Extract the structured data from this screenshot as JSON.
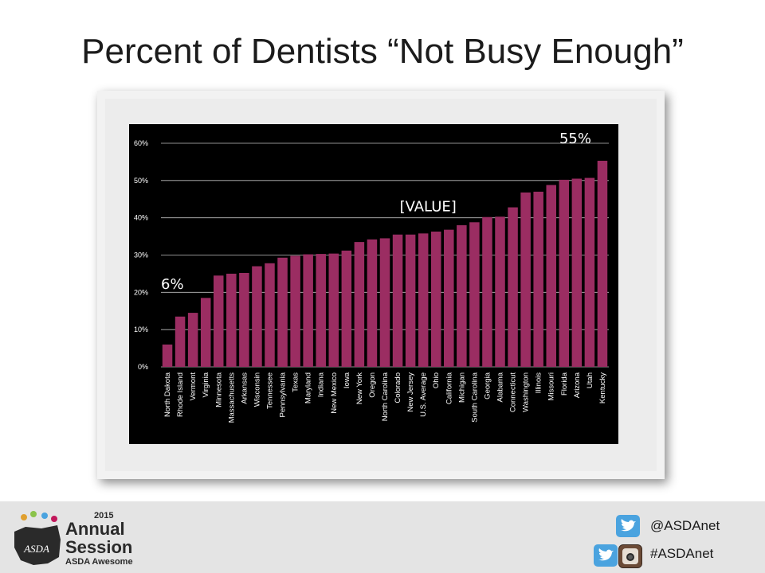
{
  "slide": {
    "title": "Percent of Dentists “Not Busy Enough”"
  },
  "footer": {
    "logo_year": "2015",
    "logo_line1": "Annual",
    "logo_line2": "Session",
    "logo_line3": "ASDA Awesome",
    "logo_emblem": "ASDA",
    "twitter_handle": "@ASDAnet",
    "hashtag": "#ASDAnet",
    "icons": [
      "twitter-icon",
      "twitter-icon",
      "instagram-icon"
    ]
  },
  "colors": {
    "bar": "#9b2d62",
    "chart_bg": "#000000",
    "grid": "#bfbfbf",
    "text": "#ffffff"
  },
  "chart_data": {
    "type": "bar",
    "title": "",
    "xlabel": "",
    "ylabel": "",
    "ylim": [
      0,
      60
    ],
    "yticks": [
      "0%",
      "10%",
      "20%",
      "30%",
      "40%",
      "50%",
      "60%"
    ],
    "grid": true,
    "categories": [
      "North Dakota",
      "Rhode Island",
      "Vermont",
      "Virginia",
      "Minnesota",
      "Massachusetts",
      "Arkansas",
      "Wisconsin",
      "Tennessee",
      "Pennsylvania",
      "Texas",
      "Maryland",
      "Indiana",
      "New Mexico",
      "Iowa",
      "New York",
      "Oregon",
      "North Carolina",
      "Colorado",
      "New Jersey",
      "U.S. Average",
      "Ohio",
      "California",
      "Michigan",
      "South Carolina",
      "Georgia",
      "Alabama",
      "Connecticut",
      "Washington",
      "Illinois",
      "Missouri",
      "Florida",
      "Arizona",
      "Utah",
      "Kentucky"
    ],
    "values": [
      6,
      13.5,
      14.5,
      18.5,
      24.5,
      25,
      25.2,
      27,
      27.8,
      29.3,
      29.8,
      30.2,
      30.3,
      30.4,
      31.2,
      33.5,
      34.2,
      34.5,
      35.5,
      35.5,
      35.8,
      36.3,
      36.8,
      38,
      38.8,
      40.2,
      40.3,
      42.8,
      46.8,
      47,
      48.8,
      50.2,
      50.5,
      50.7,
      55.3
    ],
    "data_labels": [
      {
        "text": "6%",
        "index": 0
      },
      {
        "text": "[VALUE]",
        "index": 20
      },
      {
        "text": "55%",
        "index": 34
      }
    ]
  }
}
